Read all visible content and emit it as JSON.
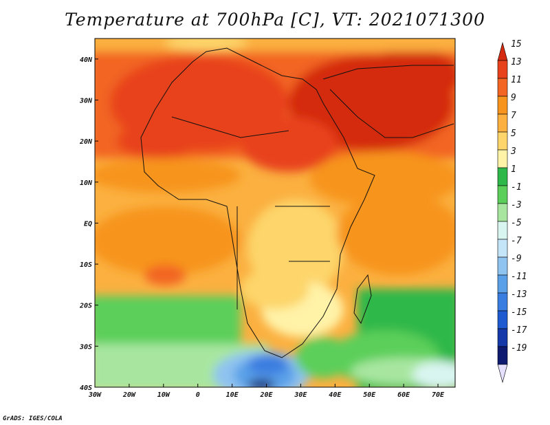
{
  "title": "Temperature at 700hPa [C], VT: 2021071300",
  "credit": "GrADS: IGES/COLA",
  "map": {
    "lon_ticks": [
      "30W",
      "20W",
      "10W",
      "0",
      "10E",
      "20E",
      "30E",
      "40E",
      "50E",
      "60E",
      "70E"
    ],
    "lat_ticks": [
      "40N",
      "30N",
      "20N",
      "10N",
      "EQ",
      "10S",
      "20S",
      "30S",
      "40S"
    ],
    "lon_range": [
      -30,
      75
    ],
    "lat_range": [
      -40,
      45
    ]
  },
  "colorbar": {
    "labels": [
      "15",
      "13",
      "11",
      "9",
      "7",
      "5",
      "3",
      "1",
      "-1",
      "-3",
      "-5",
      "-7",
      "-9",
      "-11",
      "-13",
      "-15",
      "-17",
      "-19"
    ],
    "colors": [
      "#d42a10",
      "#e8421c",
      "#f26522",
      "#f7941d",
      "#fbb040",
      "#fdd56b",
      "#fff3a8",
      "#2fb84a",
      "#5ccf5a",
      "#a8e6a0",
      "#d9f5f0",
      "#c4e4f8",
      "#8fc3f0",
      "#5aa0e8",
      "#3a7de0",
      "#1e5bd0",
      "#1539a8",
      "#0d1a70",
      "#e6e0ff"
    ]
  }
}
